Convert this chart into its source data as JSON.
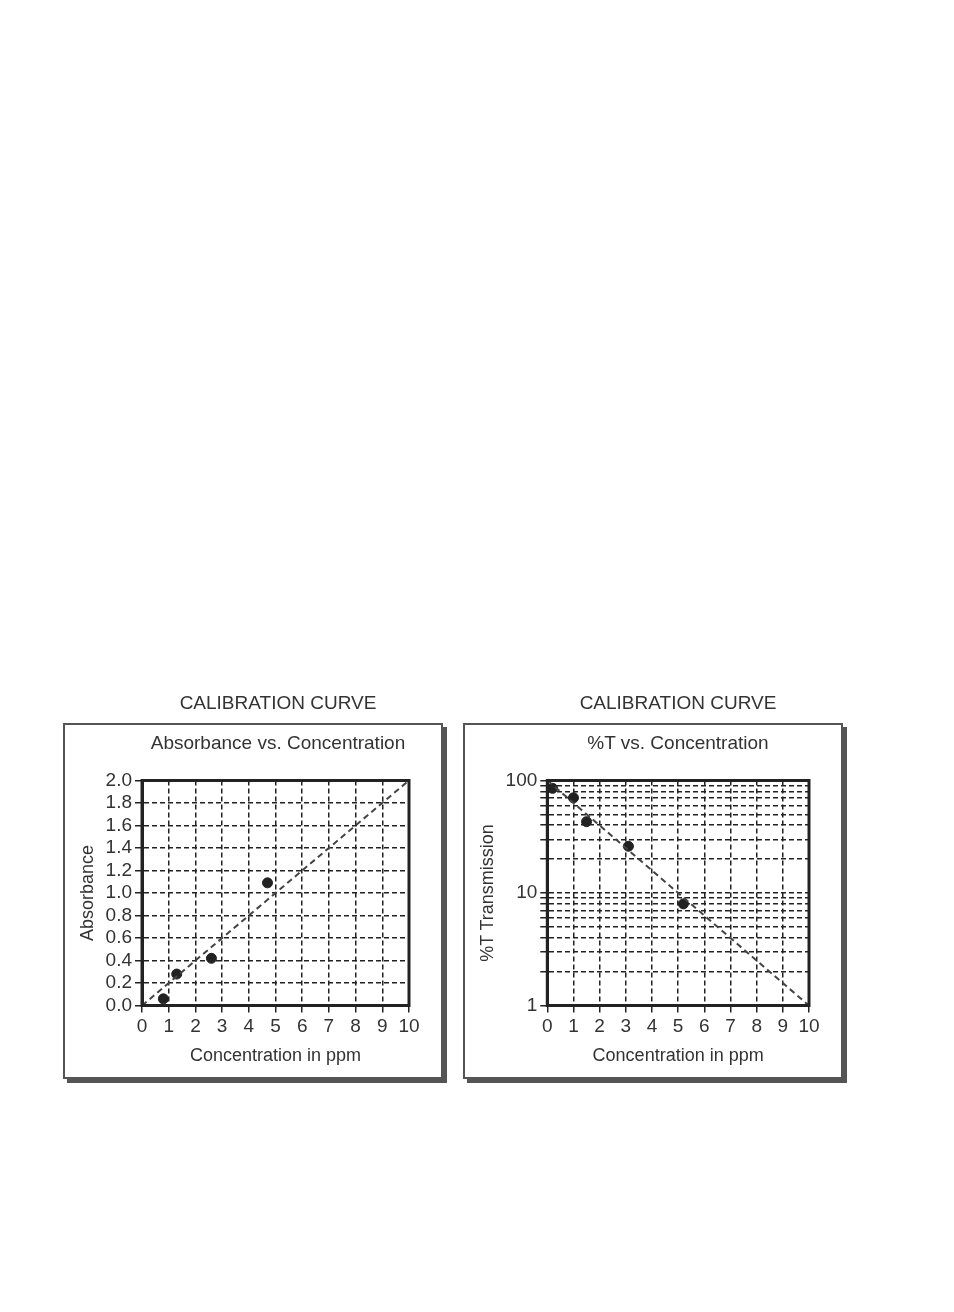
{
  "chart_data": [
    {
      "type": "scatter",
      "title": "CALIBRATION CURVE",
      "subtitle": "Absorbance vs. Concentration",
      "xlabel": "Concentration in ppm",
      "ylabel": "Absorbance",
      "xlim": [
        0,
        10
      ],
      "xticks": [
        0,
        1,
        2,
        3,
        4,
        5,
        6,
        7,
        8,
        9,
        10
      ],
      "ylim": [
        0,
        2
      ],
      "yticks": [
        {
          "value": 0,
          "label": "0.0"
        },
        {
          "value": 0.2,
          "label": "0.2"
        },
        {
          "value": 0.4,
          "label": "0.4"
        },
        {
          "value": 0.6,
          "label": "0.6"
        },
        {
          "value": 0.8,
          "label": "0.8"
        },
        {
          "value": 1,
          "label": "1.0"
        },
        {
          "value": 1.2,
          "label": "1.2"
        },
        {
          "value": 1.4,
          "label": "1.4"
        },
        {
          "value": 1.6,
          "label": "1.6"
        },
        {
          "value": 1.8,
          "label": "1.8"
        },
        {
          "value": 2,
          "label": "2.0"
        }
      ],
      "grid": true,
      "series": [
        {
          "x": [
            0.8,
            1.3,
            2.6,
            4.7
          ],
          "values": [
            0.06,
            0.28,
            0.42,
            1.09
          ],
          "color": "#222222",
          "marker": "circle"
        },
        {
          "type": "line",
          "x": [
            0,
            10
          ],
          "values": [
            0,
            2
          ],
          "color": "#444444",
          "line_style": "dashed",
          "marker": "none"
        }
      ]
    },
    {
      "type": "scatter",
      "title": "CALIBRATION CURVE",
      "subtitle": "%T vs. Concentration",
      "xlabel": "Concentration in ppm",
      "ylabel": "%T Transmission",
      "xlim": [
        0,
        10
      ],
      "xticks": [
        0,
        1,
        2,
        3,
        4,
        5,
        6,
        7,
        8,
        9,
        10
      ],
      "ylim": [
        1,
        100
      ],
      "yticks": [
        1,
        {
          "value": 2,
          "label": null
        },
        {
          "value": 3,
          "label": null
        },
        {
          "value": 4,
          "label": null
        },
        {
          "value": 5,
          "label": null
        },
        {
          "value": 6,
          "label": null
        },
        {
          "value": 7,
          "label": null
        },
        {
          "value": 8,
          "label": null
        },
        {
          "value": 9,
          "label": null
        },
        10,
        {
          "value": 20,
          "label": null
        },
        {
          "value": 30,
          "label": null
        },
        {
          "value": 40,
          "label": null
        },
        {
          "value": 50,
          "label": null
        },
        {
          "value": 60,
          "label": null
        },
        {
          "value": 70,
          "label": null
        },
        {
          "value": 80,
          "label": null
        },
        {
          "value": 90,
          "label": null
        },
        100
      ],
      "log": "y",
      "grid": true,
      "series": [
        {
          "x": [
            0.2,
            1.0,
            1.5,
            3.1,
            5.2
          ],
          "values": [
            85,
            70,
            43,
            26,
            8
          ],
          "color": "#222222",
          "marker": "circle"
        },
        {
          "type": "line",
          "x": [
            0,
            10
          ],
          "values": [
            100,
            1
          ],
          "color": "#444444",
          "line_style": "dashed",
          "marker": "none"
        }
      ]
    }
  ]
}
